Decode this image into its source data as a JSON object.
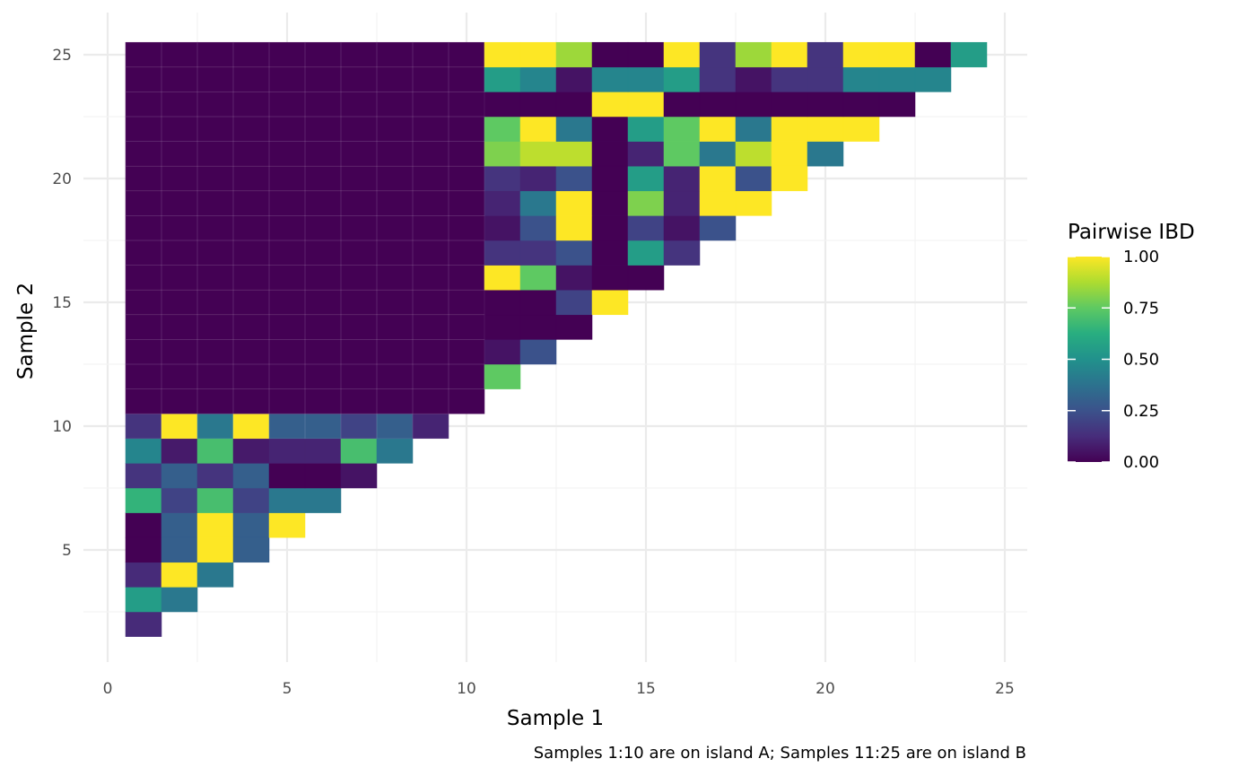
{
  "chart_data": {
    "type": "heatmap",
    "xlabel": "Sample 1",
    "ylabel": "Sample 2",
    "caption": "Samples 1:10 are on island A; Samples 11:25 are on island B",
    "xlim": [
      0,
      25
    ],
    "ylim": [
      1,
      25
    ],
    "x_ticks": [
      0,
      5,
      10,
      15,
      20,
      25
    ],
    "y_ticks": [
      5,
      10,
      15,
      20,
      25
    ],
    "grid": true,
    "colorscale": "viridis",
    "legend": {
      "title": "Pairwise IBD",
      "position": "right",
      "range": [
        0,
        1
      ],
      "ticks": [
        "0.00",
        "0.25",
        "0.50",
        "0.75",
        "1.00"
      ]
    },
    "value_note": "values[j] lists IBD for Sample 2 = j+2, Sample 1 = 1..(j+1)",
    "values": [
      [
        0.12
      ],
      [
        0.55,
        0.4
      ],
      [
        0.12,
        1.0,
        0.4
      ],
      [
        0.0,
        0.3,
        1.0,
        0.3
      ],
      [
        0.0,
        0.3,
        1.0,
        0.3,
        1.0
      ],
      [
        0.65,
        0.2,
        0.7,
        0.2,
        0.4,
        0.4
      ],
      [
        0.15,
        0.3,
        0.15,
        0.3,
        0.0,
        0.0,
        0.05
      ],
      [
        0.45,
        0.07,
        0.7,
        0.07,
        0.1,
        0.1,
        0.7,
        0.4
      ],
      [
        0.15,
        1.0,
        0.4,
        1.0,
        0.3,
        0.3,
        0.2,
        0.3,
        0.1
      ],
      [
        0.0,
        0.0,
        0.0,
        0.0,
        0.0,
        0.0,
        0.0,
        0.0,
        0.0,
        0.0
      ],
      [
        0.0,
        0.0,
        0.0,
        0.0,
        0.0,
        0.0,
        0.0,
        0.0,
        0.0,
        0.0,
        0.75
      ],
      [
        0.0,
        0.0,
        0.0,
        0.0,
        0.0,
        0.0,
        0.0,
        0.0,
        0.0,
        0.0,
        0.05,
        0.25
      ],
      [
        0.0,
        0.0,
        0.0,
        0.0,
        0.0,
        0.0,
        0.0,
        0.0,
        0.0,
        0.0,
        0.0,
        0.0,
        0.0
      ],
      [
        0.0,
        0.0,
        0.0,
        0.0,
        0.0,
        0.0,
        0.0,
        0.0,
        0.0,
        0.0,
        0.0,
        0.0,
        0.2,
        1.0
      ],
      [
        0.0,
        0.0,
        0.0,
        0.0,
        0.0,
        0.0,
        0.0,
        0.0,
        0.0,
        0.0,
        1.0,
        0.75,
        0.05,
        0.0,
        0.0
      ],
      [
        0.0,
        0.0,
        0.0,
        0.0,
        0.0,
        0.0,
        0.0,
        0.0,
        0.0,
        0.0,
        0.15,
        0.15,
        0.25,
        0.0,
        0.55,
        0.15
      ],
      [
        0.0,
        0.0,
        0.0,
        0.0,
        0.0,
        0.0,
        0.0,
        0.0,
        0.0,
        0.0,
        0.05,
        0.25,
        1.0,
        0.0,
        0.2,
        0.05,
        0.25
      ],
      [
        0.0,
        0.0,
        0.0,
        0.0,
        0.0,
        0.0,
        0.0,
        0.0,
        0.0,
        0.0,
        0.1,
        0.4,
        1.0,
        0.0,
        0.8,
        0.1,
        1.0,
        1.0
      ],
      [
        0.0,
        0.0,
        0.0,
        0.0,
        0.0,
        0.0,
        0.0,
        0.0,
        0.0,
        0.0,
        0.15,
        0.1,
        0.25,
        0.0,
        0.55,
        0.1,
        1.0,
        0.25,
        1.0
      ],
      [
        0.0,
        0.0,
        0.0,
        0.0,
        0.0,
        0.0,
        0.0,
        0.0,
        0.0,
        0.0,
        0.8,
        0.9,
        0.9,
        0.0,
        0.1,
        0.75,
        0.4,
        0.9,
        1.0,
        0.4
      ],
      [
        0.0,
        0.0,
        0.0,
        0.0,
        0.0,
        0.0,
        0.0,
        0.0,
        0.0,
        0.0,
        0.75,
        1.0,
        0.4,
        0.0,
        0.55,
        0.75,
        1.0,
        0.4,
        1.0,
        1.0,
        1.0
      ],
      [
        0.0,
        0.0,
        0.0,
        0.0,
        0.0,
        0.0,
        0.0,
        0.0,
        0.0,
        0.0,
        0.0,
        0.0,
        0.0,
        1.0,
        1.0,
        0.0,
        0.0,
        0.0,
        0.0,
        0.0,
        0.0,
        0.0
      ],
      [
        0.0,
        0.0,
        0.0,
        0.0,
        0.0,
        0.0,
        0.0,
        0.0,
        0.0,
        0.0,
        0.55,
        0.45,
        0.05,
        0.45,
        0.45,
        0.55,
        0.15,
        0.05,
        0.15,
        0.15,
        0.45,
        0.45,
        0.45
      ],
      [
        0.0,
        0.0,
        0.0,
        0.0,
        0.0,
        0.0,
        0.0,
        0.0,
        0.0,
        0.0,
        1.0,
        1.0,
        0.85,
        0.0,
        0.0,
        1.0,
        0.15,
        0.85,
        1.0,
        0.15,
        1.0,
        1.0,
        0.0,
        0.55
      ]
    ]
  }
}
